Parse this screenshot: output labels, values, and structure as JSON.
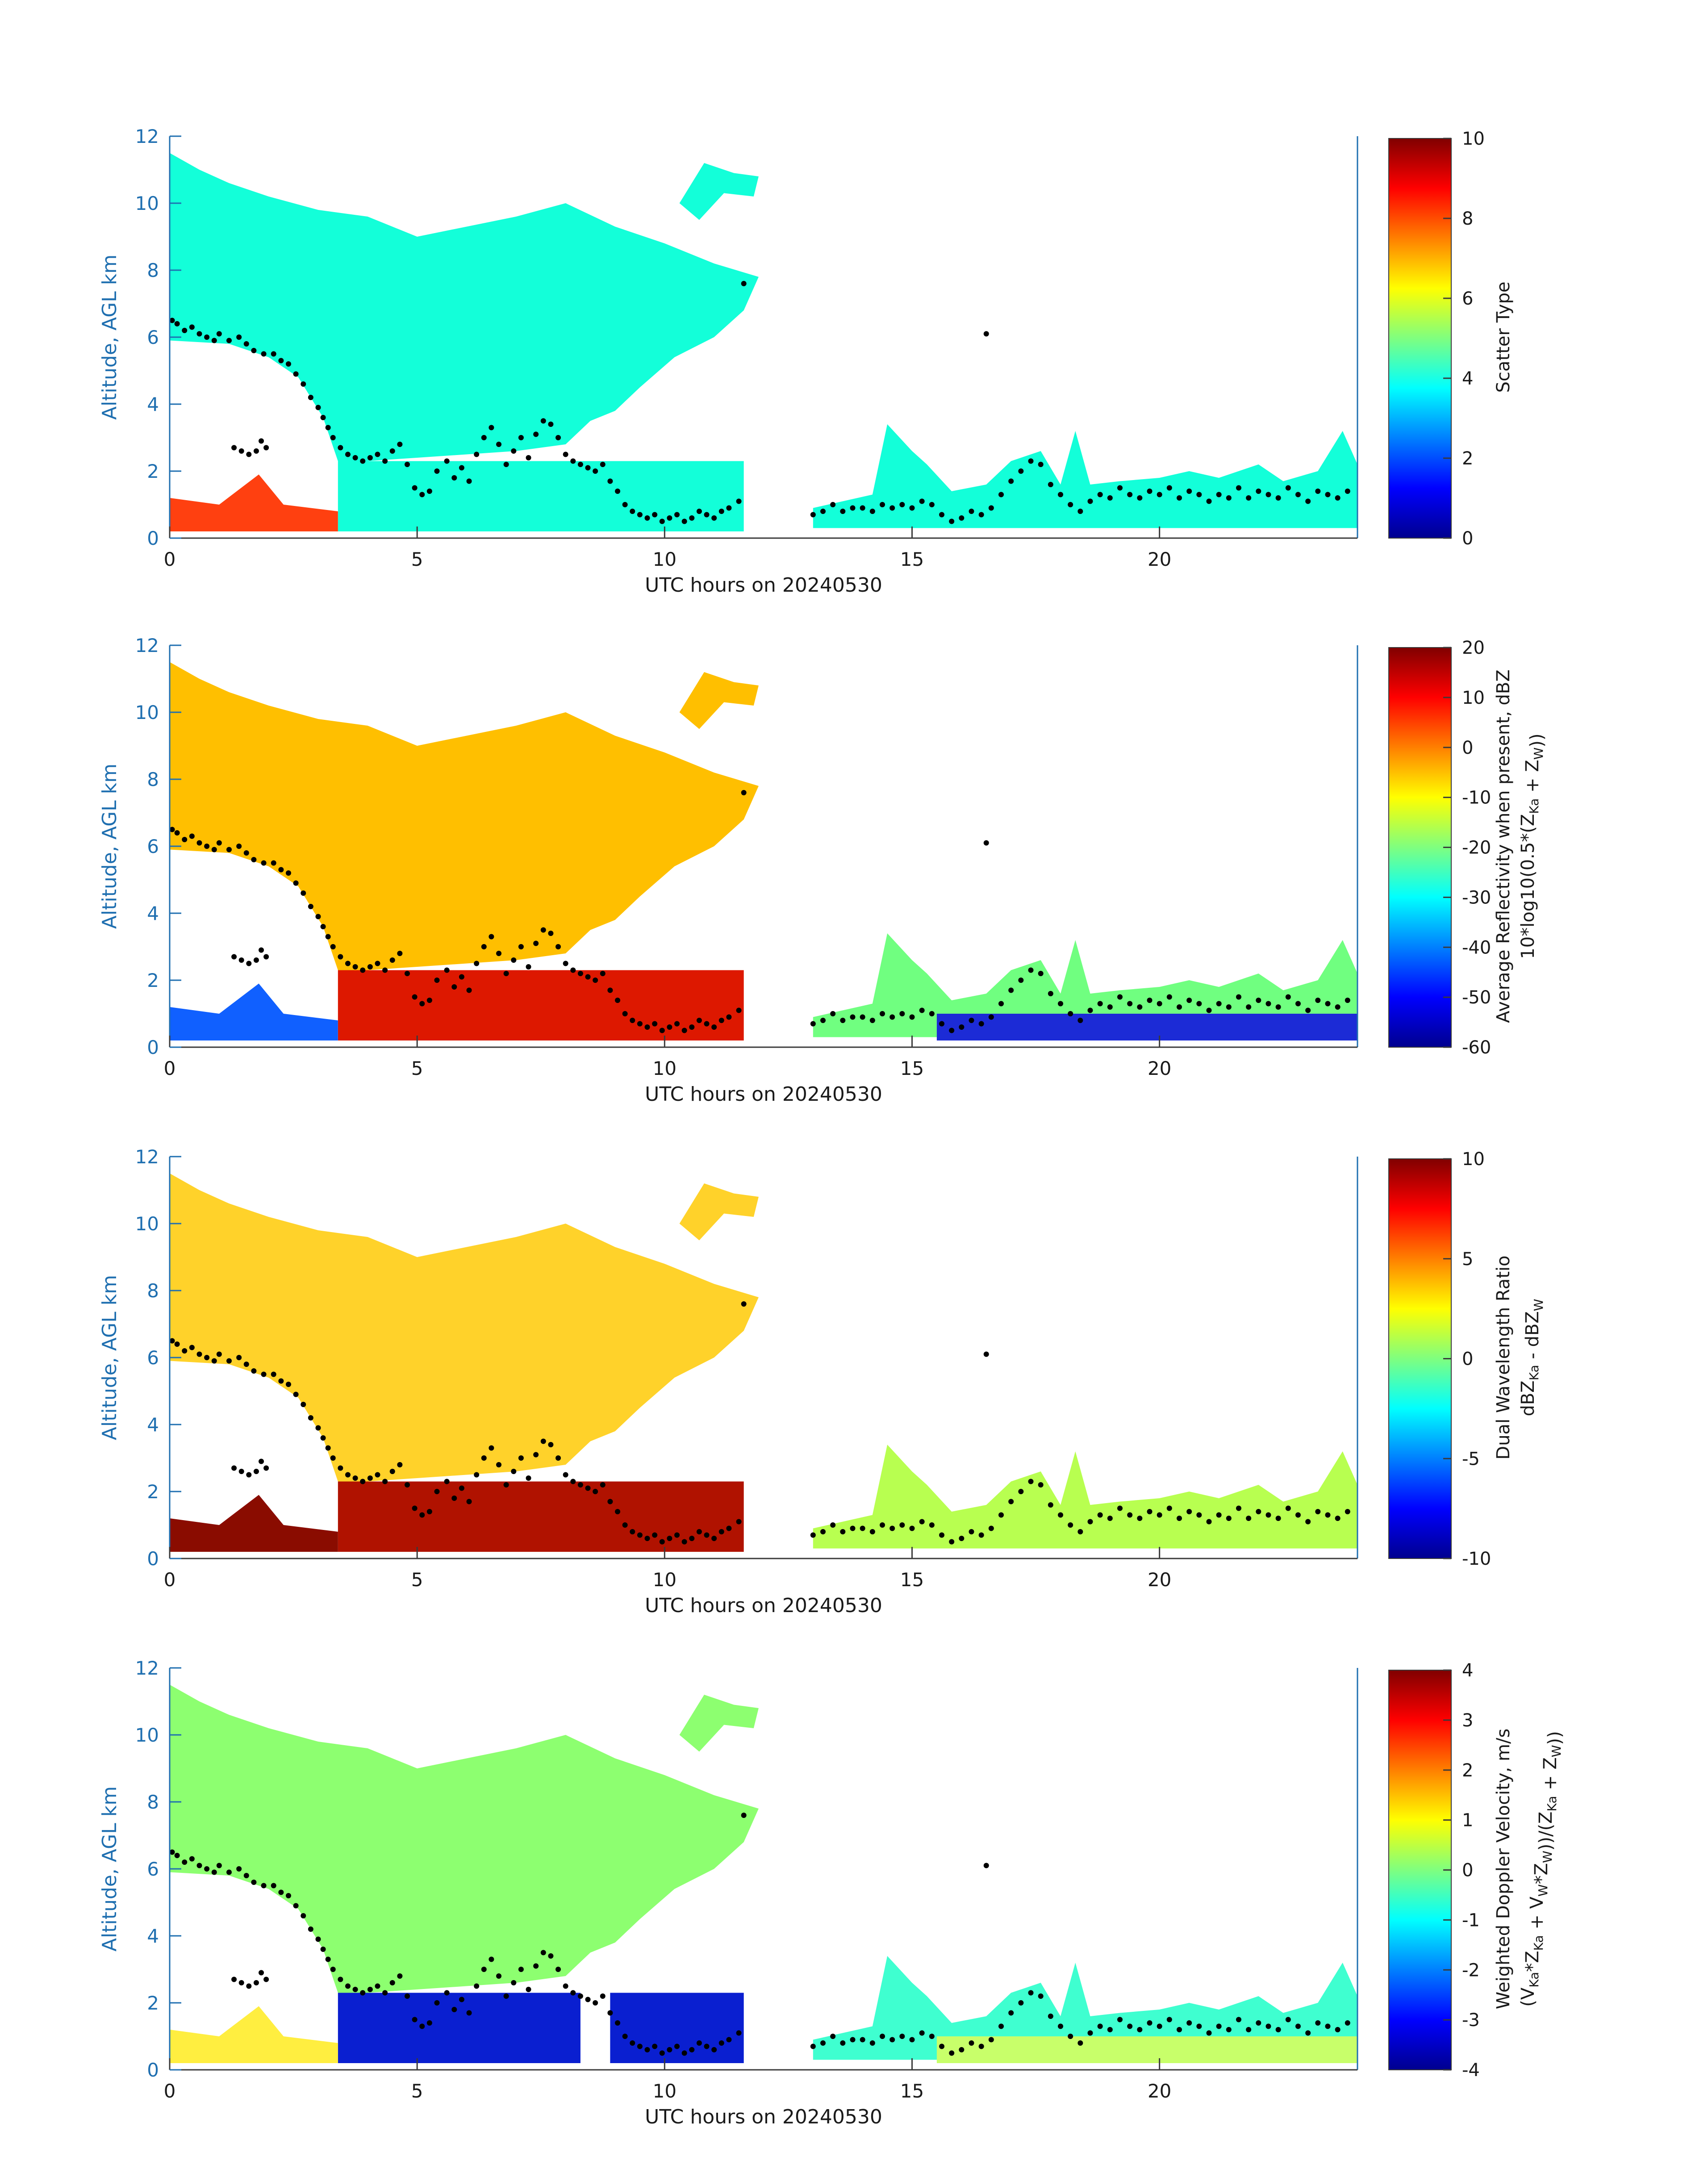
{
  "figure": {
    "xlabel": "UTC hours on 20240530",
    "ylabel": "Altitude, AGL km",
    "x_ticks": [
      0,
      5,
      10,
      15,
      20
    ],
    "y_ticks": [
      0,
      2,
      4,
      6,
      8,
      10,
      12
    ]
  },
  "chart_data": [
    {
      "type": "heatmap",
      "title": "",
      "xlabel": "UTC hours on 20240530",
      "ylabel": "Altitude, AGL km",
      "xlim": [
        0,
        24
      ],
      "ylim": [
        0,
        12
      ],
      "x_ticks": [
        0,
        5,
        10,
        15,
        20
      ],
      "y_ticks": [
        0,
        2,
        4,
        6,
        8,
        10,
        12
      ],
      "colorbar": {
        "label_lines": [
          "Scatter Type"
        ],
        "min": 0,
        "max": 10,
        "ticks": [
          0,
          2,
          4,
          6,
          8,
          10
        ]
      },
      "dominant_values": [
        4,
        8.7
      ],
      "overlay_points": "black dots tracing cloud-base altitude through the day"
    },
    {
      "type": "heatmap",
      "title": "",
      "xlabel": "UTC hours on 20240530",
      "ylabel": "Altitude, AGL km",
      "xlim": [
        0,
        24
      ],
      "ylim": [
        0,
        12
      ],
      "x_ticks": [
        0,
        5,
        10,
        15,
        20
      ],
      "y_ticks": [
        0,
        2,
        4,
        6,
        8,
        10,
        12
      ],
      "colorbar": {
        "label_lines": [
          "Average Reflectivity when present, dBZ",
          "10*log10(0.5*(Z_Ka + Z_W))"
        ],
        "min": -60,
        "max": 20,
        "ticks": [
          -60,
          -50,
          -40,
          -30,
          -20,
          -10,
          0,
          10,
          20
        ]
      }
    },
    {
      "type": "heatmap",
      "title": "",
      "xlabel": "UTC hours on 20240530",
      "ylabel": "Altitude, AGL km",
      "xlim": [
        0,
        24
      ],
      "ylim": [
        0,
        12
      ],
      "x_ticks": [
        0,
        5,
        10,
        15,
        20
      ],
      "y_ticks": [
        0,
        2,
        4,
        6,
        8,
        10,
        12
      ],
      "colorbar": {
        "label_lines": [
          "Dual Wavelength Ratio",
          "dBZ_Ka - dBZ_W"
        ],
        "min": -10,
        "max": 10,
        "ticks": [
          -10,
          -5,
          0,
          5,
          10
        ]
      }
    },
    {
      "type": "heatmap",
      "title": "",
      "xlabel": "UTC hours on 20240530",
      "ylabel": "Altitude, AGL km",
      "xlim": [
        0,
        24
      ],
      "ylim": [
        0,
        12
      ],
      "x_ticks": [
        0,
        5,
        10,
        15,
        20
      ],
      "y_ticks": [
        0,
        2,
        4,
        6,
        8,
        10,
        12
      ],
      "colorbar": {
        "label_lines": [
          "Weighted Doppler Velocity, m/s",
          "(V_Ka*Z_Ka + V_W*Z_W))/(Z_Ka + Z_W))"
        ],
        "min": -4,
        "max": 4,
        "ticks": [
          -4,
          -3,
          -2,
          -1,
          0,
          1,
          2,
          3,
          4
        ]
      }
    }
  ],
  "cloud_base_points": [
    [
      0.05,
      6.5
    ],
    [
      0.15,
      6.4
    ],
    [
      0.3,
      6.2
    ],
    [
      0.45,
      6.3
    ],
    [
      0.6,
      6.1
    ],
    [
      0.75,
      6.0
    ],
    [
      0.9,
      5.9
    ],
    [
      1.0,
      6.1
    ],
    [
      1.2,
      5.9
    ],
    [
      1.4,
      6.0
    ],
    [
      1.55,
      5.8
    ],
    [
      1.7,
      5.6
    ],
    [
      1.9,
      5.5
    ],
    [
      2.1,
      5.5
    ],
    [
      2.25,
      5.3
    ],
    [
      2.4,
      5.2
    ],
    [
      2.55,
      4.9
    ],
    [
      2.7,
      4.6
    ],
    [
      2.85,
      4.2
    ],
    [
      3.0,
      3.9
    ],
    [
      3.1,
      3.6
    ],
    [
      3.2,
      3.3
    ],
    [
      3.3,
      3.0
    ],
    [
      3.45,
      2.7
    ],
    [
      3.6,
      2.5
    ],
    [
      3.75,
      2.4
    ],
    [
      3.9,
      2.3
    ],
    [
      4.05,
      2.4
    ],
    [
      4.2,
      2.5
    ],
    [
      4.35,
      2.3
    ],
    [
      4.5,
      2.6
    ],
    [
      4.65,
      2.8
    ],
    [
      4.8,
      2.2
    ],
    [
      4.95,
      1.5
    ],
    [
      5.1,
      1.3
    ],
    [
      5.25,
      1.4
    ],
    [
      5.4,
      2.0
    ],
    [
      5.6,
      2.3
    ],
    [
      5.75,
      1.8
    ],
    [
      5.9,
      2.1
    ],
    [
      6.05,
      1.7
    ],
    [
      6.2,
      2.5
    ],
    [
      6.35,
      3.0
    ],
    [
      6.5,
      3.3
    ],
    [
      6.65,
      2.8
    ],
    [
      6.8,
      2.2
    ],
    [
      6.95,
      2.6
    ],
    [
      7.1,
      3.0
    ],
    [
      7.25,
      2.4
    ],
    [
      7.4,
      3.1
    ],
    [
      7.55,
      3.5
    ],
    [
      7.7,
      3.4
    ],
    [
      7.85,
      3.0
    ],
    [
      8.0,
      2.5
    ],
    [
      8.15,
      2.3
    ],
    [
      8.3,
      2.2
    ],
    [
      8.45,
      2.1
    ],
    [
      8.6,
      2.0
    ],
    [
      8.75,
      2.2
    ],
    [
      8.9,
      1.7
    ],
    [
      9.05,
      1.4
    ],
    [
      9.2,
      1.0
    ],
    [
      9.35,
      0.8
    ],
    [
      9.5,
      0.7
    ],
    [
      9.65,
      0.6
    ],
    [
      9.8,
      0.7
    ],
    [
      9.95,
      0.5
    ],
    [
      10.1,
      0.6
    ],
    [
      10.25,
      0.7
    ],
    [
      10.4,
      0.5
    ],
    [
      10.55,
      0.6
    ],
    [
      10.7,
      0.8
    ],
    [
      10.85,
      0.7
    ],
    [
      11.0,
      0.6
    ],
    [
      11.15,
      0.8
    ],
    [
      11.3,
      0.9
    ],
    [
      11.5,
      1.1
    ],
    [
      11.6,
      7.6
    ],
    [
      13.0,
      0.7
    ],
    [
      13.2,
      0.8
    ],
    [
      13.4,
      1.0
    ],
    [
      13.6,
      0.8
    ],
    [
      13.8,
      0.9
    ],
    [
      14.0,
      0.9
    ],
    [
      14.2,
      0.8
    ],
    [
      14.4,
      1.0
    ],
    [
      14.6,
      0.9
    ],
    [
      14.8,
      1.0
    ],
    [
      15.0,
      0.9
    ],
    [
      15.2,
      1.1
    ],
    [
      15.4,
      1.0
    ],
    [
      15.6,
      0.7
    ],
    [
      15.8,
      0.5
    ],
    [
      16.0,
      0.6
    ],
    [
      16.2,
      0.8
    ],
    [
      16.4,
      0.7
    ],
    [
      16.5,
      6.1
    ],
    [
      16.6,
      0.9
    ],
    [
      16.8,
      1.3
    ],
    [
      17.0,
      1.7
    ],
    [
      17.2,
      2.0
    ],
    [
      17.4,
      2.3
    ],
    [
      17.6,
      2.2
    ],
    [
      17.8,
      1.6
    ],
    [
      18.0,
      1.3
    ],
    [
      18.2,
      1.0
    ],
    [
      18.4,
      0.8
    ],
    [
      18.6,
      1.1
    ],
    [
      18.8,
      1.3
    ],
    [
      19.0,
      1.2
    ],
    [
      19.2,
      1.5
    ],
    [
      19.4,
      1.3
    ],
    [
      19.6,
      1.2
    ],
    [
      19.8,
      1.4
    ],
    [
      20.0,
      1.3
    ],
    [
      20.2,
      1.5
    ],
    [
      20.4,
      1.2
    ],
    [
      20.6,
      1.4
    ],
    [
      20.8,
      1.3
    ],
    [
      21.0,
      1.1
    ],
    [
      21.2,
      1.3
    ],
    [
      21.4,
      1.2
    ],
    [
      21.6,
      1.5
    ],
    [
      21.8,
      1.2
    ],
    [
      22.0,
      1.4
    ],
    [
      22.2,
      1.3
    ],
    [
      22.4,
      1.2
    ],
    [
      22.6,
      1.5
    ],
    [
      22.8,
      1.3
    ],
    [
      23.0,
      1.1
    ],
    [
      23.2,
      1.4
    ],
    [
      23.4,
      1.3
    ],
    [
      23.6,
      1.2
    ],
    [
      23.8,
      1.4
    ]
  ],
  "low_cluster_points": [
    [
      1.3,
      2.7
    ],
    [
      1.45,
      2.6
    ],
    [
      1.6,
      2.5
    ],
    [
      1.75,
      2.6
    ],
    [
      1.85,
      2.9
    ],
    [
      1.95,
      2.7
    ]
  ]
}
